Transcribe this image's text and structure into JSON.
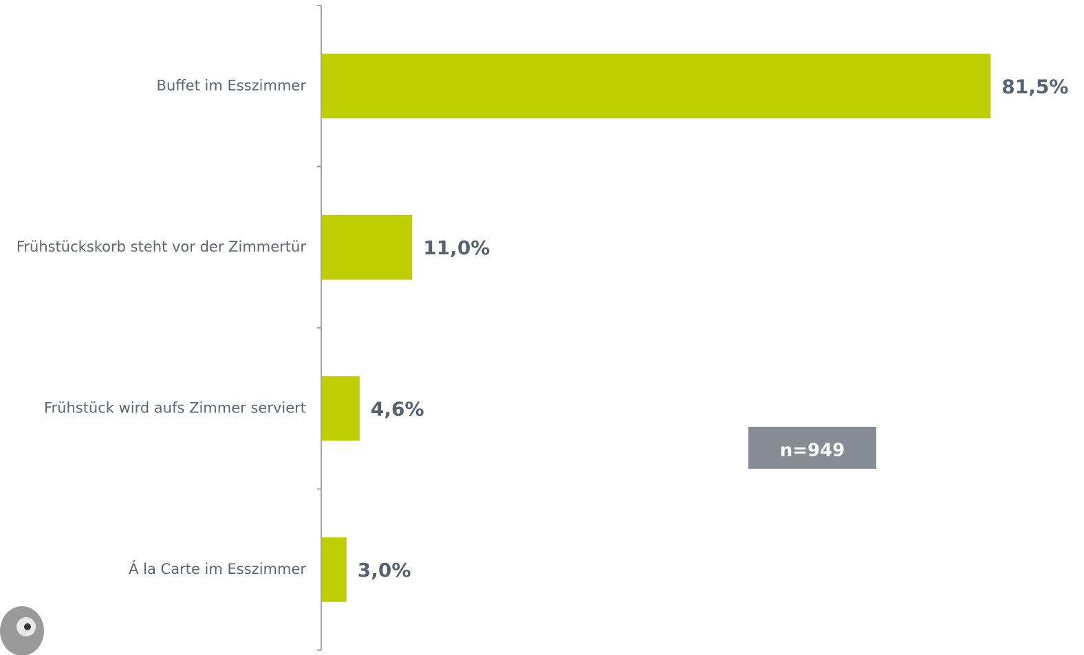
{
  "chart_data": {
    "type": "bar",
    "orientation": "horizontal",
    "categories": [
      "Buffet im Esszimmer",
      "Frühstückskorb steht vor der Zimmertür",
      "Frühstück wird aufs Zimmer serviert",
      "Á la Carte im Esszimmer"
    ],
    "values": [
      81.5,
      11.0,
      4.6,
      3.0
    ],
    "value_labels": [
      "81,5%",
      "11,0%",
      "4,6%",
      "3,0%"
    ],
    "color": "#bfce00",
    "xlim": [
      0,
      100
    ],
    "annotation": "n=949"
  }
}
